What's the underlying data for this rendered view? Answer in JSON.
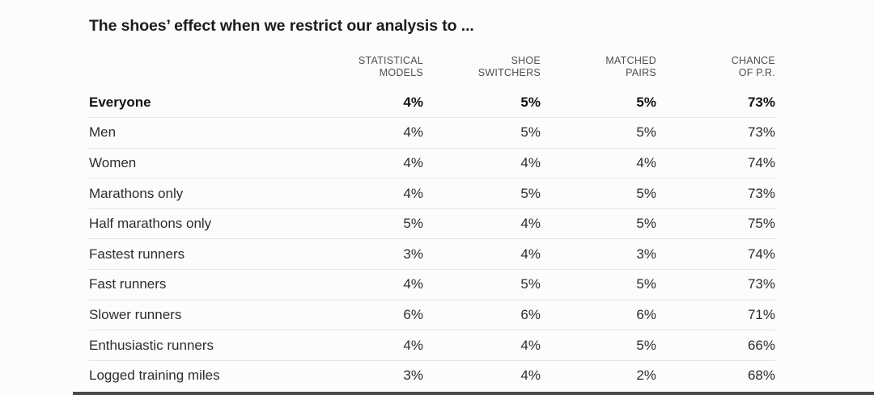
{
  "title": "The shoes’ effect when we restrict our analysis to ...",
  "table": {
    "columns": [
      {
        "line1": "STATISTICAL",
        "line2": "MODELS"
      },
      {
        "line1": "SHOE",
        "line2": "SWITCHERS"
      },
      {
        "line1": "MATCHED",
        "line2": "PAIRS"
      },
      {
        "line1": "CHANCE",
        "line2": "OF P.R."
      }
    ],
    "rows": [
      {
        "label": "Everyone",
        "values": [
          "4%",
          "5%",
          "5%",
          "73%"
        ]
      },
      {
        "label": "Men",
        "values": [
          "4%",
          "5%",
          "5%",
          "73%"
        ]
      },
      {
        "label": "Women",
        "values": [
          "4%",
          "4%",
          "4%",
          "74%"
        ]
      },
      {
        "label": "Marathons only",
        "values": [
          "4%",
          "5%",
          "5%",
          "73%"
        ]
      },
      {
        "label": "Half marathons only",
        "values": [
          "5%",
          "4%",
          "5%",
          "75%"
        ]
      },
      {
        "label": "Fastest runners",
        "values": [
          "3%",
          "4%",
          "3%",
          "74%"
        ]
      },
      {
        "label": "Fast runners",
        "values": [
          "4%",
          "5%",
          "5%",
          "73%"
        ]
      },
      {
        "label": "Slower runners",
        "values": [
          "6%",
          "6%",
          "6%",
          "71%"
        ]
      },
      {
        "label": "Enthusiastic runners",
        "values": [
          "4%",
          "4%",
          "5%",
          "66%"
        ]
      },
      {
        "label": "Logged training miles",
        "values": [
          "3%",
          "4%",
          "2%",
          "68%"
        ]
      }
    ]
  },
  "chart_data": {
    "type": "table",
    "title": "The shoes' effect when we restrict our analysis to ...",
    "columns": [
      "Statistical models",
      "Shoe switchers",
      "Matched pairs",
      "Chance of P.R."
    ],
    "row_labels": [
      "Everyone",
      "Men",
      "Women",
      "Marathons only",
      "Half marathons only",
      "Fastest runners",
      "Fast runners",
      "Slower runners",
      "Enthusiastic runners",
      "Logged training miles"
    ],
    "values_percent": [
      [
        4,
        5,
        5,
        73
      ],
      [
        4,
        5,
        5,
        73
      ],
      [
        4,
        4,
        4,
        74
      ],
      [
        4,
        5,
        5,
        73
      ],
      [
        5,
        4,
        5,
        75
      ],
      [
        3,
        4,
        3,
        74
      ],
      [
        4,
        5,
        5,
        73
      ],
      [
        6,
        6,
        6,
        71
      ],
      [
        4,
        4,
        5,
        66
      ],
      [
        3,
        4,
        2,
        68
      ]
    ],
    "emphasized_row": "Everyone",
    "colors": {
      "background": "#fcfcfc",
      "title_text": "#1c1c1c",
      "header_text": "#4f4f4f",
      "body_text": "#2d2d2d",
      "separator": "#e4e4e4",
      "bottom_bar": "#4a4a4a"
    }
  }
}
